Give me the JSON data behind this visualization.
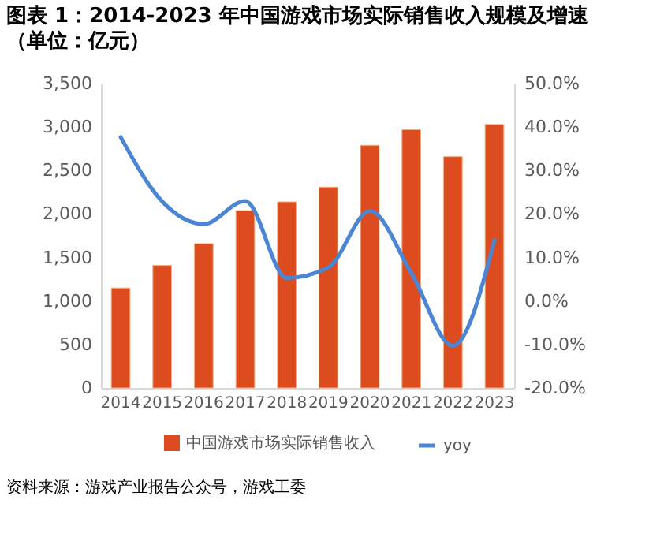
{
  "chart_data": {
    "type": "bar",
    "title": "图表 1：2014-2023 年中国游戏市场实际销售收入规模及增速",
    "subtitle": "（单位：亿元）",
    "categories": [
      "2014",
      "2015",
      "2016",
      "2017",
      "2018",
      "2019",
      "2020",
      "2021",
      "2022",
      "2023"
    ],
    "series": [
      {
        "name": "中国游戏市场实际销售收入",
        "color": "#dd4c1f",
        "values": [
          1150,
          1410,
          1660,
          2040,
          2140,
          2310,
          2790,
          2970,
          2660,
          3030
        ]
      },
      {
        "name": "yoy",
        "type": "line",
        "axis": "y2",
        "color": "#4a86d4",
        "values": [
          37.7,
          22.9,
          17.7,
          23.0,
          5.3,
          7.7,
          20.7,
          6.4,
          -10.3,
          14.0
        ]
      }
    ],
    "ylim": [
      0,
      3500
    ],
    "yticks": [
      0,
      500,
      {
        "value": 1000,
        "label": "1,000"
      },
      {
        "value": 1500,
        "label": "1,500"
      },
      {
        "value": 2000,
        "label": "2,000"
      },
      {
        "value": 2500,
        "label": "2,500"
      },
      {
        "value": 3000,
        "label": "3,000"
      },
      {
        "value": 3500,
        "label": "3,500"
      }
    ],
    "y2lim": [
      -20,
      50
    ],
    "y2ticks": [
      {
        "value": -20,
        "label": "-20.0%"
      },
      {
        "value": -10,
        "label": "-10.0%"
      },
      {
        "value": 0,
        "label": "0.0%"
      },
      {
        "value": 10,
        "label": "10.0%"
      },
      {
        "value": 20,
        "label": "20.0%"
      },
      {
        "value": 30,
        "label": "30.0%"
      },
      {
        "value": 40,
        "label": "40.0%"
      },
      {
        "value": 50,
        "label": "50.0%"
      }
    ],
    "grid": false,
    "legend": "bottom",
    "annotations": [
      "资料来源：游戏产业报告公众号，游戏工委"
    ]
  }
}
